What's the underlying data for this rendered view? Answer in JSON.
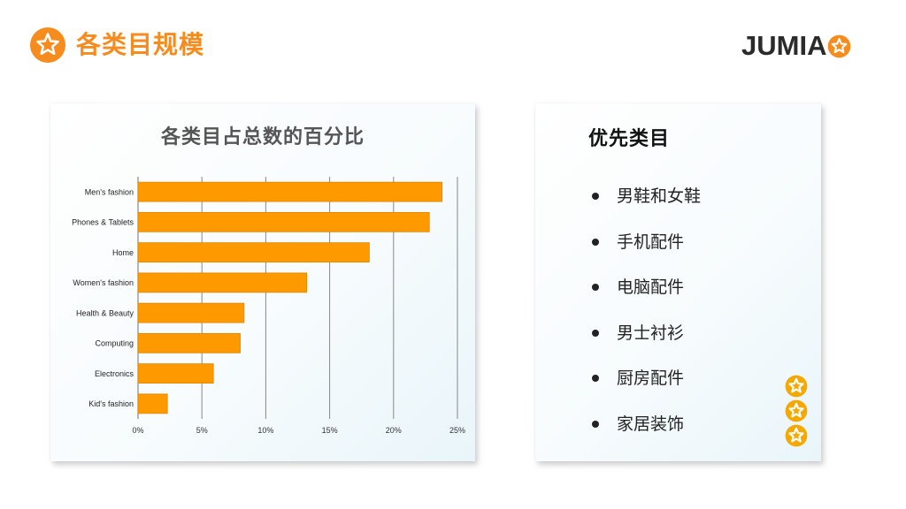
{
  "header": {
    "title": "各类目规模",
    "title_icon": "star-circle-icon",
    "logo_text": "JUMIA",
    "logo_icon": "star-circle-icon"
  },
  "colors": {
    "accent": "#F68B1E",
    "bar": "#FF9900",
    "bar_border": "#E08600",
    "grid": "#888888",
    "text_dark": "#222222"
  },
  "chart_data": {
    "type": "bar",
    "orientation": "horizontal",
    "title": "各类目占总数的百分比",
    "categories": [
      "Men's fashion",
      "Phones & Tablets",
      "Home",
      "Women's fashion",
      "Health & Beauty",
      "Computing",
      "Electronics",
      "Kid's fashion"
    ],
    "values": [
      23.8,
      22.8,
      18.1,
      13.2,
      8.3,
      8.0,
      5.9,
      2.3
    ],
    "xlim": [
      0,
      25
    ],
    "xticks": [
      "0%",
      "5%",
      "10%",
      "15%",
      "20%",
      "25%"
    ],
    "xlabel": "",
    "ylabel": "",
    "grid": "vertical",
    "legend": "none"
  },
  "priority": {
    "title": "优先类目",
    "items": [
      "男鞋和女鞋",
      "手机配件",
      "电脑配件",
      "男士衬衫",
      "厨房配件",
      "家居装饰"
    ]
  },
  "decor": {
    "stars_icon": "star-circle-icon",
    "stars_count": 3
  }
}
